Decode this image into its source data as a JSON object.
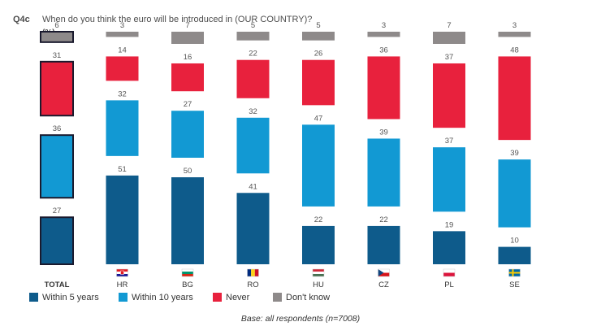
{
  "header": {
    "code": "Q4c",
    "question": "When do you think the euro will be introduced in (OUR COUNTRY)?",
    "unit": "(%)"
  },
  "base_note": "Base: all respondents (n=7008)",
  "colors": {
    "within_5_years": "#0e5b8b",
    "within_10_years": "#1299d3",
    "never": "#e8213d",
    "dont_know": "#8e8a8a",
    "total_outline": "#1a1a2e"
  },
  "chart_data": {
    "type": "bar",
    "title": "When do you think the euro will be introduced in (OUR COUNTRY)?",
    "unit": "%",
    "categories": [
      "TOTAL",
      "HR",
      "BG",
      "RO",
      "HU",
      "CZ",
      "PL",
      "SE"
    ],
    "category_flags": [
      "",
      "flag-croatia-icon",
      "flag-bulgaria-icon",
      "flag-romania-icon",
      "flag-hungary-icon",
      "flag-czechia-icon",
      "flag-poland-icon",
      "flag-sweden-icon"
    ],
    "series": [
      {
        "name": "Within 5 years",
        "values": [
          27,
          51,
          50,
          41,
          22,
          22,
          19,
          10
        ]
      },
      {
        "name": "Within 10 years",
        "values": [
          36,
          32,
          27,
          32,
          47,
          39,
          37,
          39
        ]
      },
      {
        "name": "Never",
        "values": [
          31,
          14,
          16,
          22,
          26,
          36,
          37,
          48
        ]
      },
      {
        "name": "Don't know",
        "values": [
          6,
          3,
          7,
          5,
          5,
          3,
          7,
          3
        ]
      }
    ],
    "stacking": "stacked segments separated by gaps",
    "legend_position": "bottom-left",
    "grid": false
  }
}
